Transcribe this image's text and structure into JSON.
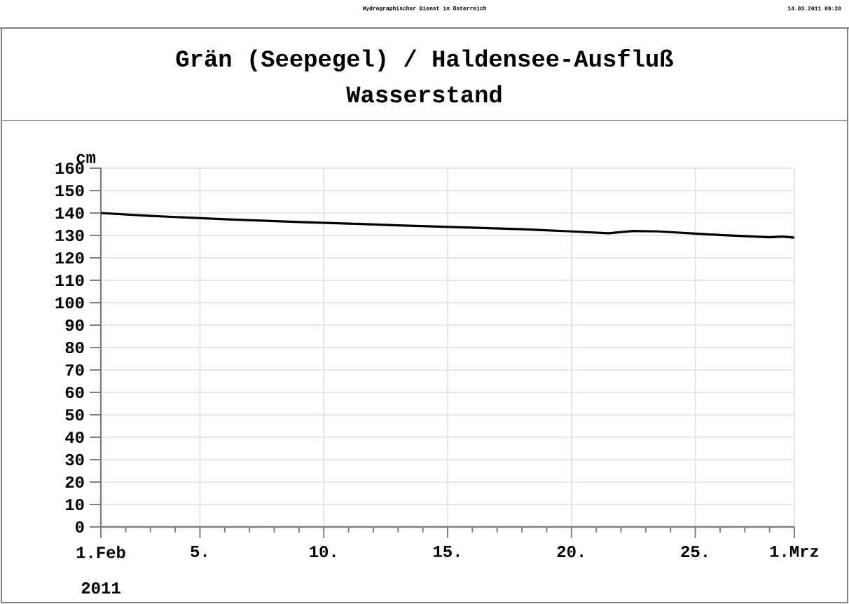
{
  "chart_data": {
    "type": "line",
    "title": "Grän (Seepegel) / Haldensee-Ausfluß",
    "subtitle": "Wasserstand",
    "ylabel": "cm",
    "xlabel": "2011",
    "annotations": [
      "Hydrographischer Dienst in Österreich",
      "14.03.2011 09:20"
    ],
    "x": [
      "2011-02-01",
      "2011-02-03",
      "2011-02-06",
      "2011-02-09",
      "2011-02-11",
      "2011-02-13",
      "2011-02-16",
      "2011-02-18",
      "2011-02-20",
      "2011-02-21T12:00",
      "2011-02-22T12:00",
      "2011-02-23T12:00",
      "2011-02-25",
      "2011-02-26",
      "2011-02-28",
      "2011-02-28T12:00",
      "2011-03-01"
    ],
    "series": [
      {
        "color": "#000000",
        "values": [
          140,
          138.7,
          137.2,
          136,
          135.3,
          134.5,
          133.5,
          132.8,
          131.8,
          131,
          132,
          131.8,
          130.8,
          130.2,
          129.2,
          129.5,
          129
        ]
      }
    ],
    "xlim": [
      "2011-02-01",
      "2011-03-01"
    ],
    "xticks": [
      {
        "value": "2011-02-01",
        "label": "1.Feb"
      },
      {
        "value": "2011-02-02",
        "label": null
      },
      {
        "value": "2011-02-03",
        "label": null
      },
      {
        "value": "2011-02-04",
        "label": null
      },
      {
        "value": "2011-02-05",
        "label": "5."
      },
      {
        "value": "2011-02-06",
        "label": null
      },
      {
        "value": "2011-02-07",
        "label": null
      },
      {
        "value": "2011-02-08",
        "label": null
      },
      {
        "value": "2011-02-09",
        "label": null
      },
      {
        "value": "2011-02-10",
        "label": "10."
      },
      {
        "value": "2011-02-11",
        "label": null
      },
      {
        "value": "2011-02-12",
        "label": null
      },
      {
        "value": "2011-02-13",
        "label": null
      },
      {
        "value": "2011-02-14",
        "label": null
      },
      {
        "value": "2011-02-15",
        "label": "15."
      },
      {
        "value": "2011-02-16",
        "label": null
      },
      {
        "value": "2011-02-17",
        "label": null
      },
      {
        "value": "2011-02-18",
        "label": null
      },
      {
        "value": "2011-02-19",
        "label": null
      },
      {
        "value": "2011-02-20",
        "label": "20."
      },
      {
        "value": "2011-02-21",
        "label": null
      },
      {
        "value": "2011-02-22",
        "label": null
      },
      {
        "value": "2011-02-23",
        "label": null
      },
      {
        "value": "2011-02-24",
        "label": null
      },
      {
        "value": "2011-02-25",
        "label": "25."
      },
      {
        "value": "2011-02-26",
        "label": null
      },
      {
        "value": "2011-02-27",
        "label": null
      },
      {
        "value": "2011-02-28",
        "label": null
      },
      {
        "value": "2011-03-01",
        "label": "1.Mrz"
      }
    ],
    "ylim": [
      0,
      160
    ],
    "yticks": [
      0,
      10,
      20,
      30,
      40,
      50,
      60,
      70,
      80,
      90,
      100,
      110,
      120,
      130,
      140,
      150,
      160
    ],
    "grid": true,
    "marker": "none",
    "line_style": "solid"
  }
}
